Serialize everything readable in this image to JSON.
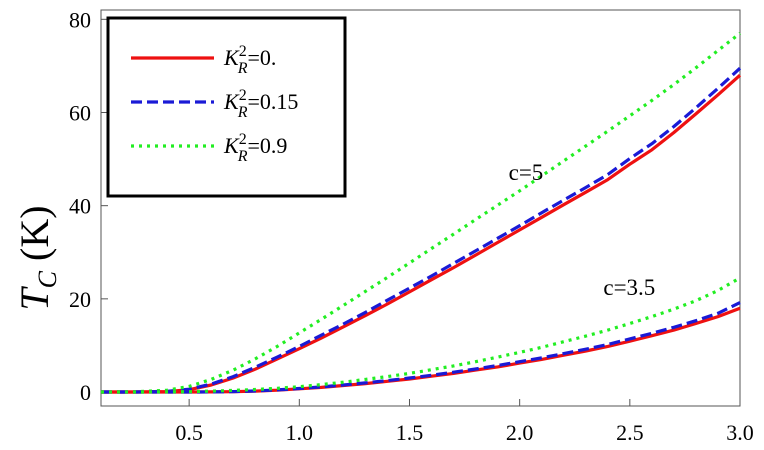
{
  "chart_data": {
    "type": "line",
    "ylabel": "T_C (K)",
    "xlabel": "",
    "xlim": [
      0.1,
      3.0
    ],
    "ylim": [
      -3,
      82
    ],
    "x_ticks": [
      0.5,
      1.0,
      1.5,
      2.0,
      2.5,
      3.0
    ],
    "x_tick_labels": [
      "0.5",
      "1.0",
      "1.5",
      "2.0",
      "2.5",
      "3.0"
    ],
    "y_ticks": [
      0,
      20,
      40,
      60,
      80
    ],
    "y_tick_labels": [
      "0",
      "20",
      "40",
      "60",
      "80"
    ],
    "legend_position": "top-left",
    "legend": [
      {
        "label_sym": "K",
        "label_sup": "2",
        "label_sub": "R",
        "label_val": "=0.",
        "color": "#ee1111",
        "style": "solid"
      },
      {
        "label_sym": "K",
        "label_sup": "2",
        "label_sub": "R",
        "label_val": "=0.15",
        "color": "#1a1ad6",
        "style": "dashed"
      },
      {
        "label_sym": "K",
        "label_sup": "2",
        "label_sub": "R",
        "label_val": "=0.9",
        "color": "#22ee22",
        "style": "dotted"
      }
    ],
    "annotations": [
      {
        "text": "c=5",
        "x": 1.95,
        "y": 45.5
      },
      {
        "text": "c=3.5",
        "x": 2.38,
        "y": 20.8
      }
    ],
    "x": [
      0.1,
      0.25,
      0.4,
      0.5,
      0.6,
      0.7,
      0.8,
      0.9,
      1.0,
      1.1,
      1.2,
      1.3,
      1.4,
      1.5,
      1.6,
      1.7,
      1.8,
      1.9,
      2.0,
      2.1,
      2.2,
      2.3,
      2.4,
      2.5,
      2.6,
      2.7,
      2.8,
      2.9,
      3.0
    ],
    "series": [
      {
        "group": "c=5",
        "legend_index": 0,
        "color": "#ee1111",
        "style": "solid",
        "values": [
          0,
          0,
          0.1,
          0.5,
          1.5,
          3.0,
          4.9,
          7.1,
          9.3,
          11.6,
          14.0,
          16.4,
          18.9,
          21.5,
          24.1,
          26.7,
          29.4,
          32.1,
          34.8,
          37.5,
          40.2,
          42.9,
          45.6,
          48.9,
          52.0,
          55.7,
          59.7,
          63.8,
          68.0
        ]
      },
      {
        "group": "c=5",
        "legend_index": 1,
        "color": "#1a1ad6",
        "style": "dashed",
        "values": [
          0,
          0,
          0.15,
          0.6,
          1.7,
          3.3,
          5.3,
          7.5,
          9.8,
          12.2,
          14.6,
          17.1,
          19.7,
          22.3,
          24.9,
          27.6,
          30.3,
          33.0,
          35.7,
          38.5,
          41.2,
          43.9,
          46.7,
          50.1,
          53.3,
          57.0,
          61.0,
          65.2,
          69.5
        ]
      },
      {
        "group": "c=5",
        "legend_index": 2,
        "color": "#22ee22",
        "style": "dotted",
        "values": [
          0,
          0.05,
          0.4,
          1.2,
          2.7,
          4.7,
          7.1,
          9.8,
          12.7,
          15.6,
          18.6,
          21.6,
          24.6,
          27.7,
          30.8,
          33.9,
          37.0,
          40.1,
          43.2,
          46.4,
          49.6,
          52.8,
          56.0,
          59.3,
          62.6,
          66.0,
          69.6,
          73.3,
          77.0
        ]
      },
      {
        "group": "c=3.5",
        "legend_index": 0,
        "color": "#ee1111",
        "style": "solid",
        "values": [
          0,
          0,
          0,
          0,
          0.02,
          0.08,
          0.2,
          0.4,
          0.7,
          1.0,
          1.4,
          1.8,
          2.3,
          2.8,
          3.4,
          4.0,
          4.7,
          5.4,
          6.2,
          7.0,
          7.9,
          8.8,
          9.8,
          10.9,
          12.1,
          13.3,
          14.7,
          16.2,
          18.0
        ]
      },
      {
        "group": "c=3.5",
        "legend_index": 1,
        "color": "#1a1ad6",
        "style": "dashed",
        "values": [
          0,
          0,
          0,
          0,
          0.03,
          0.1,
          0.22,
          0.45,
          0.75,
          1.1,
          1.5,
          1.95,
          2.45,
          3.0,
          3.6,
          4.25,
          4.95,
          5.7,
          6.5,
          7.35,
          8.25,
          9.2,
          10.2,
          11.4,
          12.6,
          13.9,
          15.3,
          16.9,
          19.2
        ]
      },
      {
        "group": "c=3.5",
        "legend_index": 2,
        "color": "#22ee22",
        "style": "dotted",
        "values": [
          0,
          0,
          0.02,
          0.08,
          0.2,
          0.35,
          0.55,
          0.8,
          1.15,
          1.6,
          2.1,
          2.7,
          3.3,
          4.0,
          4.8,
          5.6,
          6.5,
          7.5,
          8.5,
          9.6,
          10.8,
          12.0,
          13.3,
          14.7,
          16.2,
          17.8,
          19.6,
          21.8,
          24.5
        ]
      }
    ]
  }
}
